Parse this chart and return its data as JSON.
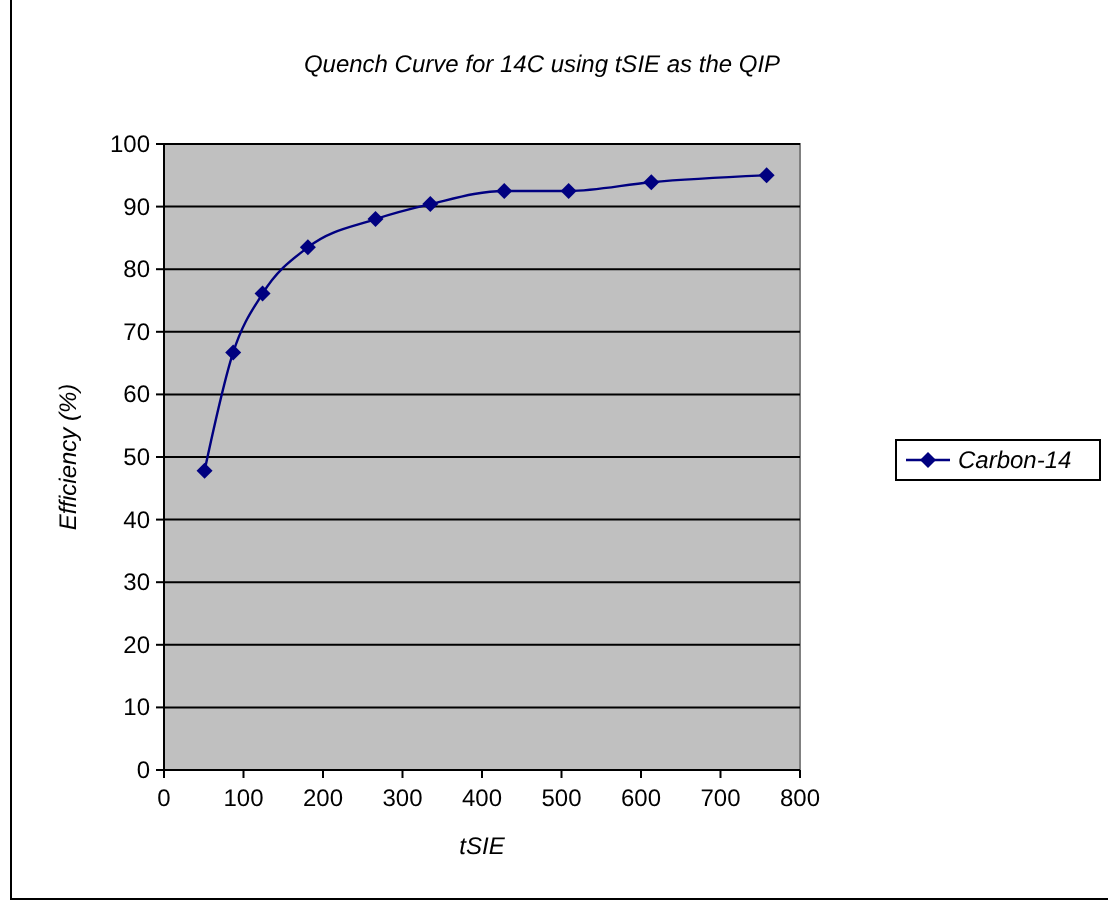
{
  "chart_data": {
    "type": "line",
    "title": "Quench Curve for 14C using tSIE as the QIP",
    "xlabel": "tSIE",
    "ylabel": "Efficiency (%)",
    "series": [
      {
        "name": "Carbon-14",
        "color": "#000080",
        "x": [
          51,
          87,
          124,
          181,
          266,
          335,
          428,
          509,
          613,
          758
        ],
        "values": [
          47.8,
          66.7,
          76.1,
          83.5,
          88,
          90.4,
          92.5,
          92.5,
          93.9,
          95
        ]
      }
    ],
    "xlim": [
      0,
      800
    ],
    "xticks": [
      0,
      100,
      200,
      300,
      400,
      500,
      600,
      700,
      800
    ],
    "ylim": [
      0,
      100
    ],
    "yticks": [
      0,
      10,
      20,
      30,
      40,
      50,
      60,
      70,
      80,
      90,
      100
    ],
    "grid": "y",
    "legend": "right",
    "marker": "diamond",
    "line_style": "solid"
  }
}
